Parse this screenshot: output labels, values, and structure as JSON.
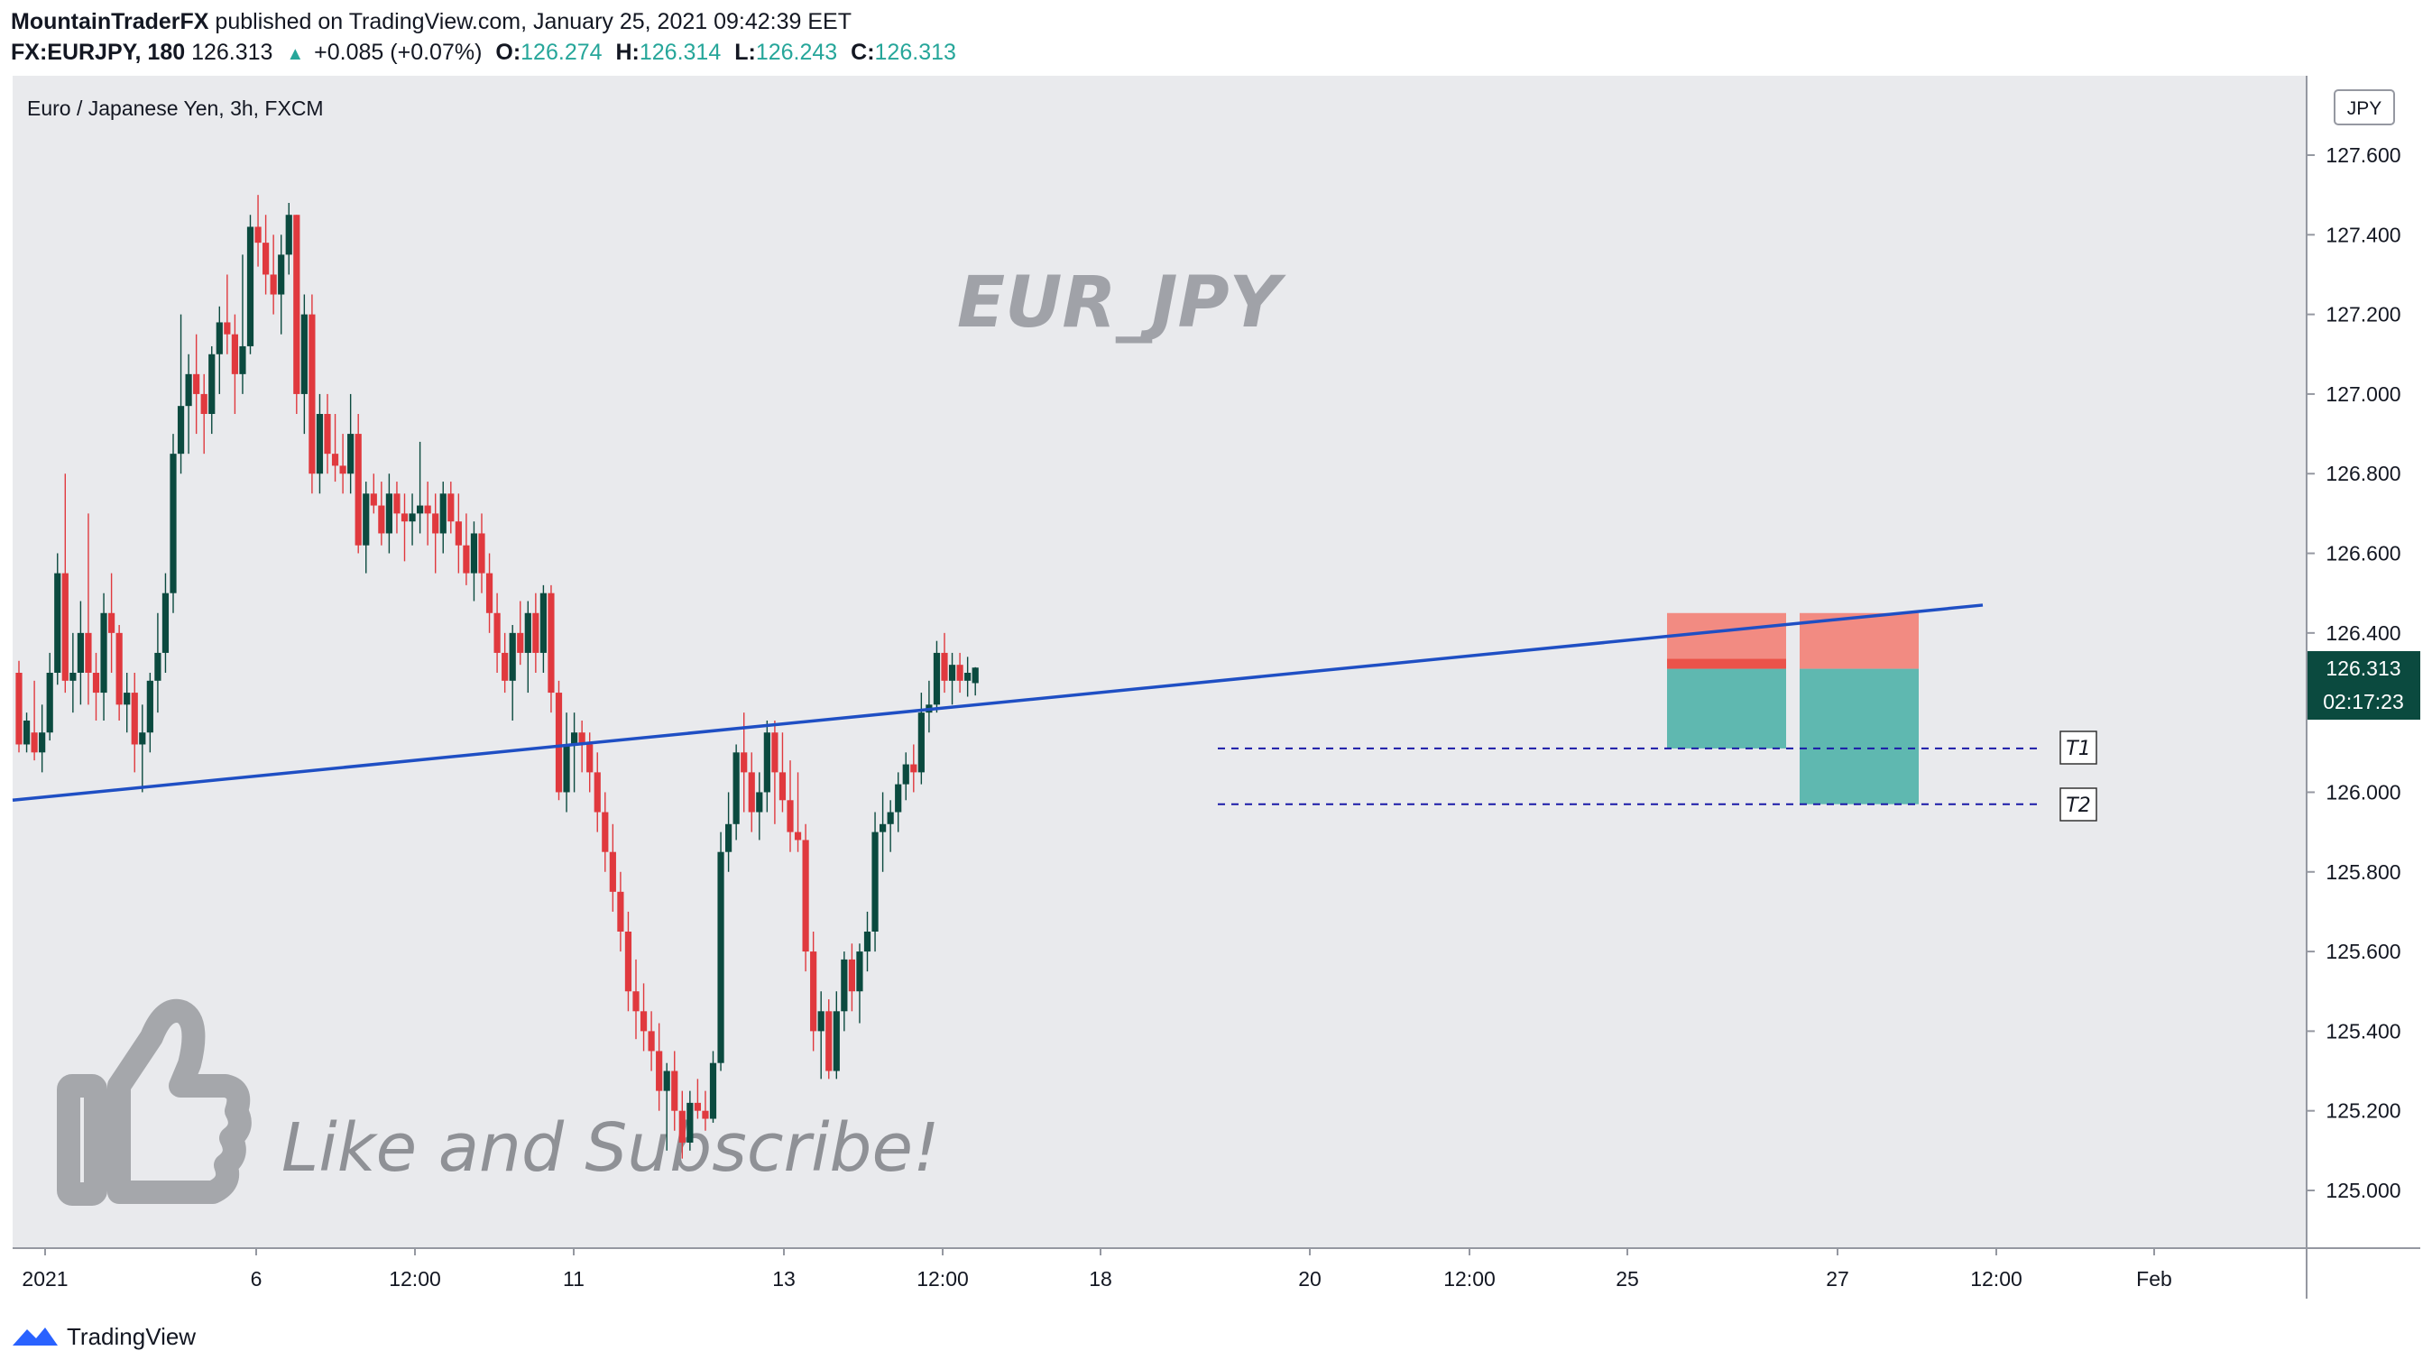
{
  "header": {
    "author": "MountainTraderFX",
    "published_text": "published on TradingView.com, January 25, 2021 09:42:39 EET",
    "symbol": "FX:EURJPY, 180",
    "last_price": "126.313",
    "change": "+0.085 (+0.07%)",
    "open_label": "O:",
    "open": "126.274",
    "high_label": "H:",
    "high": "126.314",
    "low_label": "L:",
    "low": "126.243",
    "close_label": "C:",
    "close": "126.313"
  },
  "chart": {
    "instrument_title": "Euro / Japanese Yen, 3h, FXCM",
    "watermark": "EUR_JPY",
    "overlay_text": "Like and Subscribe!",
    "currency_button": "JPY",
    "price_label": "126.313",
    "countdown_label": "02:17:23",
    "target_labels": [
      "T1",
      "T2"
    ]
  },
  "footer": {
    "brand": "TradingView"
  },
  "colors": {
    "background": "#e9eaed",
    "up_candle": "#0b4a3f",
    "down_candle": "#e0393e",
    "trendline": "#1f4fc4",
    "target_line": "#1a1aa8",
    "stop_zone": "#f28b82",
    "profit_zone": "#5fb8b0",
    "price_label_bg": "#0b4a3f",
    "watermark": "#a0a2a8"
  },
  "chart_data": {
    "type": "candlestick",
    "title": "Euro / Japanese Yen, 3h, FXCM",
    "symbol": "FX:EURJPY",
    "timeframe": "3h",
    "ylim": [
      124.8,
      127.8
    ],
    "y_ticks": [
      "127.600",
      "127.400",
      "127.200",
      "127.000",
      "126.800",
      "126.600",
      "126.400",
      "126.200",
      "126.000",
      "125.800",
      "125.600",
      "125.400",
      "125.200",
      "125.000"
    ],
    "x_ticks": [
      "2021",
      "6",
      "12:00",
      "11",
      "13",
      "12:00",
      "18",
      "20",
      "12:00",
      "25",
      "27",
      "12:00",
      "Feb"
    ],
    "last_price": 126.313,
    "candles": [
      [
        126.3,
        126.33,
        126.1,
        126.12
      ],
      [
        126.12,
        126.2,
        126.1,
        126.18
      ],
      [
        126.15,
        126.28,
        126.08,
        126.1
      ],
      [
        126.1,
        126.22,
        126.05,
        126.15
      ],
      [
        126.15,
        126.35,
        126.13,
        126.3
      ],
      [
        126.3,
        126.6,
        126.27,
        126.55
      ],
      [
        126.55,
        126.8,
        126.25,
        126.28
      ],
      [
        126.28,
        126.4,
        126.2,
        126.3
      ],
      [
        126.3,
        126.48,
        126.22,
        126.4
      ],
      [
        126.4,
        126.7,
        126.22,
        126.3
      ],
      [
        126.3,
        126.35,
        126.18,
        126.25
      ],
      [
        126.25,
        126.5,
        126.18,
        126.45
      ],
      [
        126.45,
        126.55,
        126.3,
        126.4
      ],
      [
        126.4,
        126.42,
        126.18,
        126.22
      ],
      [
        126.22,
        126.3,
        126.15,
        126.25
      ],
      [
        126.25,
        126.3,
        126.05,
        126.12
      ],
      [
        126.12,
        126.22,
        126.0,
        126.15
      ],
      [
        126.15,
        126.3,
        126.1,
        126.28
      ],
      [
        126.28,
        126.45,
        126.2,
        126.35
      ],
      [
        126.35,
        126.55,
        126.3,
        126.5
      ],
      [
        126.5,
        126.9,
        126.45,
        126.85
      ],
      [
        126.85,
        127.2,
        126.8,
        126.97
      ],
      [
        126.97,
        127.1,
        126.85,
        127.05
      ],
      [
        127.05,
        127.15,
        126.9,
        127.0
      ],
      [
        127.0,
        127.05,
        126.85,
        126.95
      ],
      [
        126.95,
        127.12,
        126.9,
        127.1
      ],
      [
        127.1,
        127.22,
        127.0,
        127.18
      ],
      [
        127.18,
        127.3,
        127.1,
        127.15
      ],
      [
        127.15,
        127.2,
        126.95,
        127.05
      ],
      [
        127.05,
        127.35,
        127.0,
        127.12
      ],
      [
        127.12,
        127.45,
        127.1,
        127.42
      ],
      [
        127.42,
        127.5,
        127.32,
        127.38
      ],
      [
        127.38,
        127.45,
        127.25,
        127.3
      ],
      [
        127.3,
        127.4,
        127.2,
        127.25
      ],
      [
        127.25,
        127.4,
        127.15,
        127.35
      ],
      [
        127.35,
        127.48,
        127.3,
        127.45
      ],
      [
        127.45,
        127.45,
        126.95,
        127.0
      ],
      [
        127.0,
        127.25,
        126.9,
        127.2
      ],
      [
        127.2,
        127.25,
        126.75,
        126.8
      ],
      [
        126.8,
        127.0,
        126.75,
        126.95
      ],
      [
        126.95,
        127.0,
        126.8,
        126.85
      ],
      [
        126.85,
        126.95,
        126.78,
        126.82
      ],
      [
        126.82,
        126.9,
        126.75,
        126.8
      ],
      [
        126.8,
        127.0,
        126.75,
        126.9
      ],
      [
        126.9,
        126.95,
        126.6,
        126.62
      ],
      [
        126.62,
        126.78,
        126.55,
        126.75
      ],
      [
        126.75,
        126.8,
        126.7,
        126.72
      ],
      [
        126.72,
        126.78,
        126.62,
        126.65
      ],
      [
        126.65,
        126.8,
        126.6,
        126.75
      ],
      [
        126.75,
        126.78,
        126.65,
        126.7
      ],
      [
        126.7,
        126.75,
        126.58,
        126.68
      ],
      [
        126.68,
        126.75,
        126.62,
        126.7
      ],
      [
        126.7,
        126.88,
        126.65,
        126.72
      ],
      [
        126.72,
        126.78,
        126.62,
        126.7
      ],
      [
        126.7,
        126.75,
        126.55,
        126.65
      ],
      [
        126.65,
        126.78,
        126.6,
        126.75
      ],
      [
        126.75,
        126.78,
        126.65,
        126.68
      ],
      [
        126.68,
        126.75,
        126.55,
        126.62
      ],
      [
        126.62,
        126.7,
        126.52,
        126.55
      ],
      [
        126.55,
        126.68,
        126.48,
        126.65
      ],
      [
        126.65,
        126.7,
        126.5,
        126.55
      ],
      [
        126.55,
        126.6,
        126.4,
        126.45
      ],
      [
        126.45,
        126.5,
        126.3,
        126.35
      ],
      [
        126.35,
        126.4,
        126.25,
        126.28
      ],
      [
        126.28,
        126.42,
        126.18,
        126.4
      ],
      [
        126.4,
        126.48,
        126.32,
        126.35
      ],
      [
        126.35,
        126.48,
        126.25,
        126.45
      ],
      [
        126.45,
        126.5,
        126.3,
        126.35
      ],
      [
        126.35,
        126.52,
        126.3,
        126.5
      ],
      [
        126.5,
        126.52,
        126.2,
        126.25
      ],
      [
        126.25,
        126.28,
        125.98,
        126.0
      ],
      [
        126.0,
        126.2,
        125.95,
        126.12
      ],
      [
        126.12,
        126.2,
        126.0,
        126.15
      ],
      [
        126.15,
        126.18,
        126.05,
        126.12
      ],
      [
        126.12,
        126.15,
        126.0,
        126.05
      ],
      [
        126.05,
        126.1,
        125.9,
        125.95
      ],
      [
        125.95,
        126.0,
        125.8,
        125.85
      ],
      [
        125.85,
        125.92,
        125.7,
        125.75
      ],
      [
        125.75,
        125.8,
        125.6,
        125.65
      ],
      [
        125.65,
        125.7,
        125.45,
        125.5
      ],
      [
        125.5,
        125.58,
        125.38,
        125.45
      ],
      [
        125.45,
        125.52,
        125.35,
        125.4
      ],
      [
        125.4,
        125.45,
        125.3,
        125.35
      ],
      [
        125.35,
        125.42,
        125.2,
        125.25
      ],
      [
        125.25,
        125.32,
        125.1,
        125.3
      ],
      [
        125.3,
        125.35,
        125.15,
        125.2
      ],
      [
        125.2,
        125.25,
        125.08,
        125.12
      ],
      [
        125.12,
        125.25,
        125.1,
        125.22
      ],
      [
        125.22,
        125.28,
        125.18,
        125.2
      ],
      [
        125.2,
        125.25,
        125.15,
        125.18
      ],
      [
        125.18,
        125.35,
        125.17,
        125.32
      ],
      [
        125.32,
        125.9,
        125.3,
        125.85
      ],
      [
        125.85,
        126.0,
        125.8,
        125.92
      ],
      [
        125.92,
        126.12,
        125.88,
        126.1
      ],
      [
        126.1,
        126.2,
        125.95,
        126.05
      ],
      [
        126.05,
        126.1,
        125.9,
        125.95
      ],
      [
        125.95,
        126.05,
        125.88,
        126.0
      ],
      [
        126.0,
        126.18,
        125.95,
        126.15
      ],
      [
        126.15,
        126.18,
        125.92,
        126.05
      ],
      [
        126.05,
        126.15,
        125.95,
        125.98
      ],
      [
        125.98,
        126.08,
        125.85,
        125.9
      ],
      [
        125.9,
        126.05,
        125.85,
        125.88
      ],
      [
        125.88,
        125.92,
        125.55,
        125.6
      ],
      [
        125.6,
        125.65,
        125.35,
        125.4
      ],
      [
        125.4,
        125.5,
        125.28,
        125.45
      ],
      [
        125.45,
        125.48,
        125.28,
        125.3
      ],
      [
        125.3,
        125.5,
        125.28,
        125.45
      ],
      [
        125.45,
        125.6,
        125.4,
        125.58
      ],
      [
        125.58,
        125.62,
        125.45,
        125.5
      ],
      [
        125.5,
        125.62,
        125.42,
        125.6
      ],
      [
        125.6,
        125.7,
        125.55,
        125.65
      ],
      [
        125.65,
        125.95,
        125.6,
        125.9
      ],
      [
        125.9,
        126.0,
        125.8,
        125.92
      ],
      [
        125.92,
        125.98,
        125.85,
        125.95
      ],
      [
        125.95,
        126.05,
        125.9,
        126.02
      ],
      [
        126.02,
        126.1,
        125.98,
        126.07
      ],
      [
        126.07,
        126.12,
        126.0,
        126.05
      ],
      [
        126.05,
        126.25,
        126.02,
        126.2
      ],
      [
        126.2,
        126.28,
        126.15,
        126.22
      ],
      [
        126.22,
        126.38,
        126.2,
        126.35
      ],
      [
        126.35,
        126.4,
        126.25,
        126.28
      ],
      [
        126.28,
        126.35,
        126.22,
        126.32
      ],
      [
        126.32,
        126.35,
        126.25,
        126.28
      ],
      [
        126.28,
        126.34,
        126.24,
        126.3
      ],
      [
        126.274,
        126.314,
        126.243,
        126.313
      ]
    ],
    "trendline": {
      "from": [
        "2021",
        125.98
      ],
      "to": [
        "12:00 (Jan 27)",
        126.47
      ],
      "label": ""
    },
    "targets": [
      {
        "label": "T1",
        "price": 126.11
      },
      {
        "label": "T2",
        "price": 125.97
      }
    ],
    "trade_boxes": [
      {
        "entry": 126.31,
        "stop": 126.45,
        "target": 126.11
      },
      {
        "entry": 126.31,
        "stop": 126.45,
        "target": 125.97
      }
    ]
  }
}
